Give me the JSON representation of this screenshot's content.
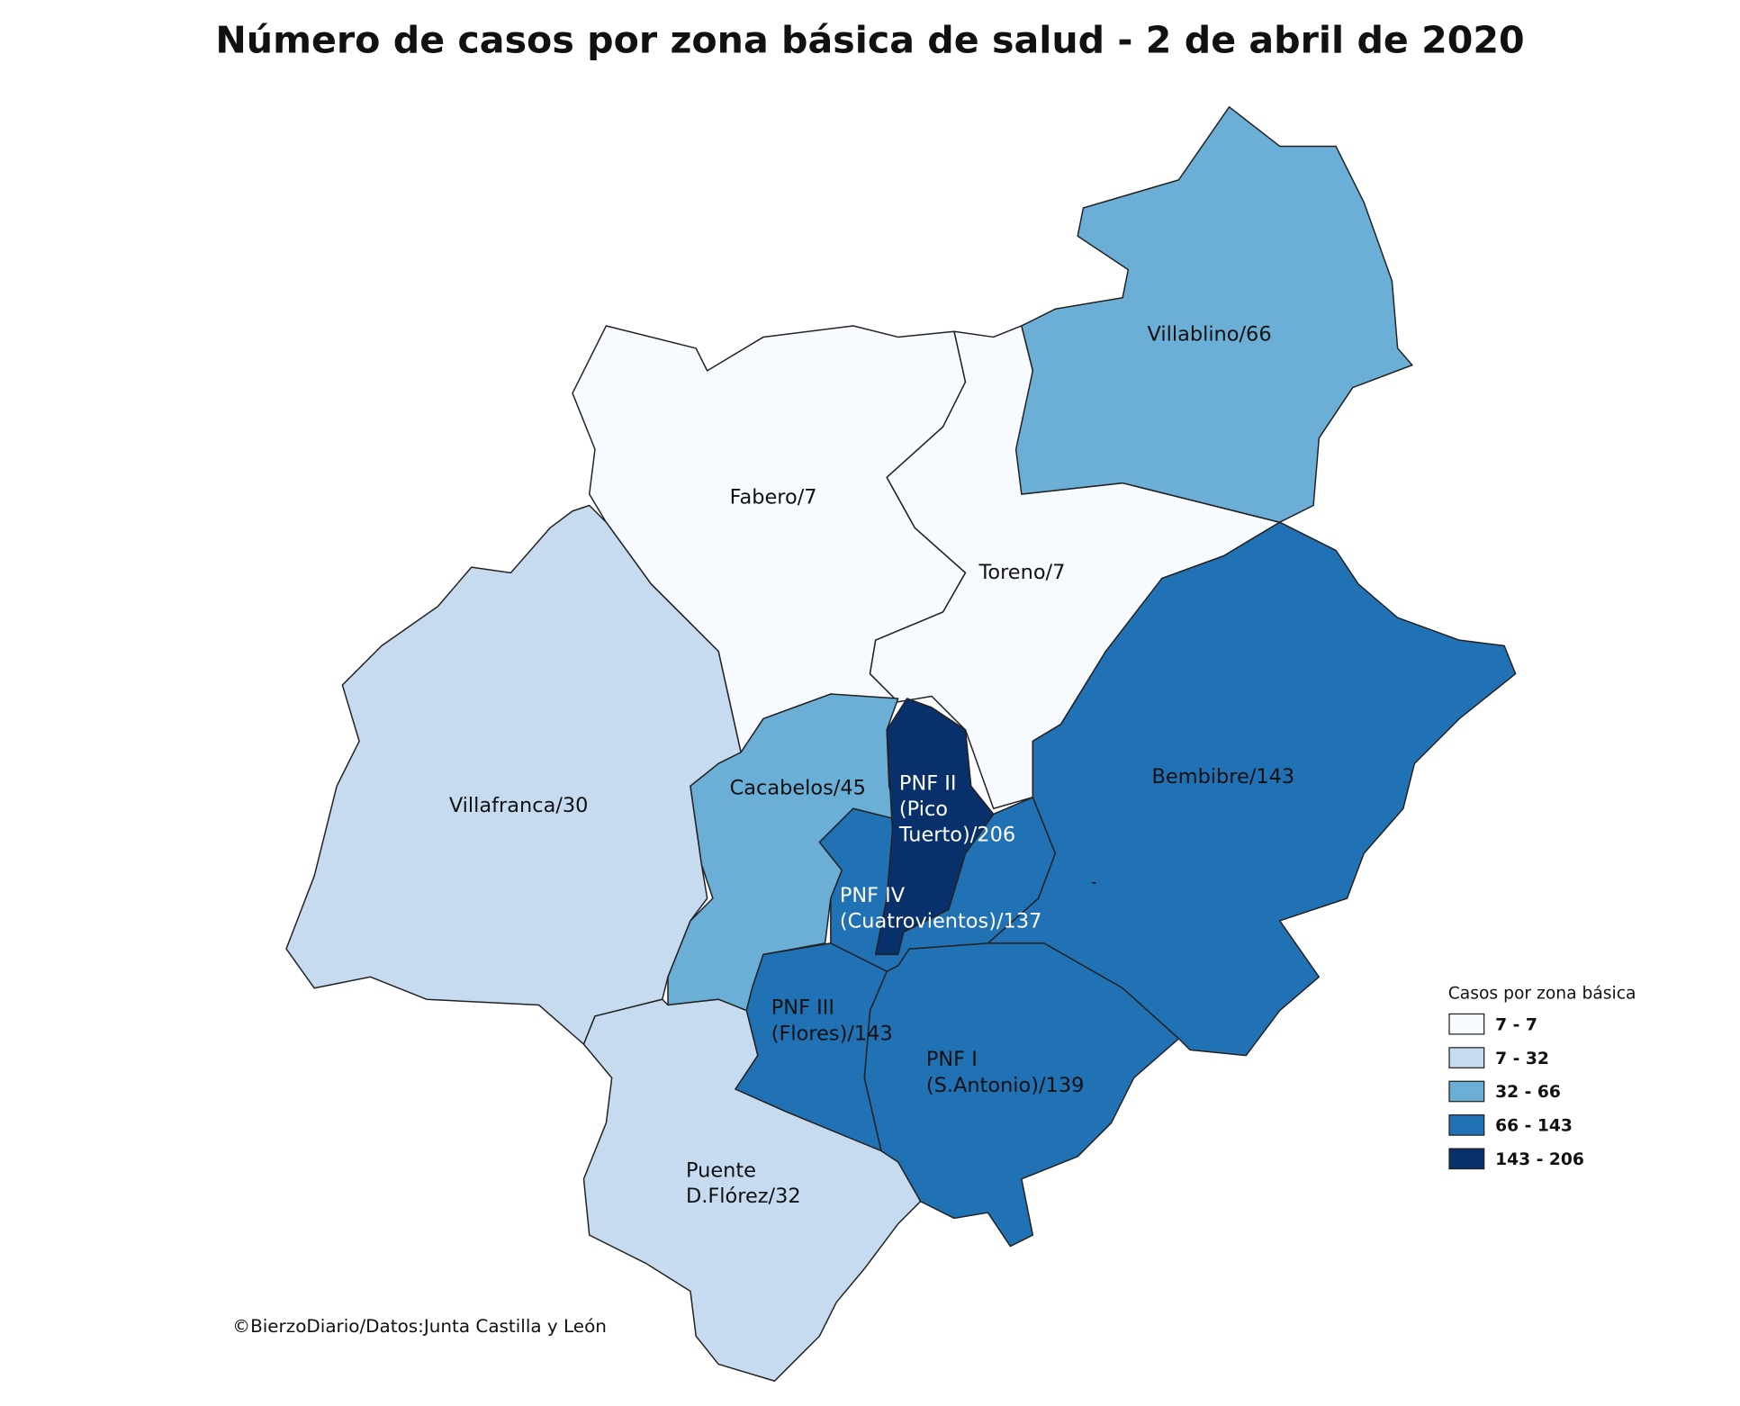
{
  "title": "Número de casos por zona básica de salud - 2 de abril de 2020",
  "credit": "©BierzoDiario/Datos:Junta Castilla y León",
  "annotation": "-",
  "legend": {
    "title": "Casos por zona básica",
    "classes": [
      {
        "label": "7 - 7",
        "min": 7,
        "max": 7,
        "color": "#f7fbff"
      },
      {
        "label": "7 - 32",
        "min": 7,
        "max": 32,
        "color": "#c6dbef"
      },
      {
        "label": "32 - 66",
        "min": 32,
        "max": 66,
        "color": "#6baed6"
      },
      {
        "label": "66 - 143",
        "min": 66,
        "max": 143,
        "color": "#2171b5"
      },
      {
        "label": "143 - 206",
        "min": 143,
        "max": 206,
        "color": "#08306b"
      }
    ]
  },
  "regions": [
    {
      "label": [
        "Fabero/7"
      ],
      "cases": 7
    },
    {
      "label": [
        "Toreno/7"
      ],
      "cases": 7
    },
    {
      "label": [
        "Villablino/66"
      ],
      "cases": 66
    },
    {
      "label": [
        "Villafranca/30"
      ],
      "cases": 30
    },
    {
      "label": [
        "Cacabelos/45"
      ],
      "cases": 45
    },
    {
      "label": [
        "Bembibre/143"
      ],
      "cases": 143
    },
    {
      "label": [
        "PNF I",
        "(S.Antonio)/139"
      ],
      "cases": 139
    },
    {
      "label": [
        "PNF III",
        "(Flores)/143"
      ],
      "cases": 143
    },
    {
      "label": [
        "PNF IV",
        "(Cuatrovientos)/137"
      ],
      "cases": 137
    },
    {
      "label": [
        "PNF II",
        "(Pico",
        "Tuerto)/206"
      ],
      "cases": 206
    },
    {
      "label": [
        "Puente",
        "D.Flórez/32"
      ],
      "cases": 32
    }
  ]
}
